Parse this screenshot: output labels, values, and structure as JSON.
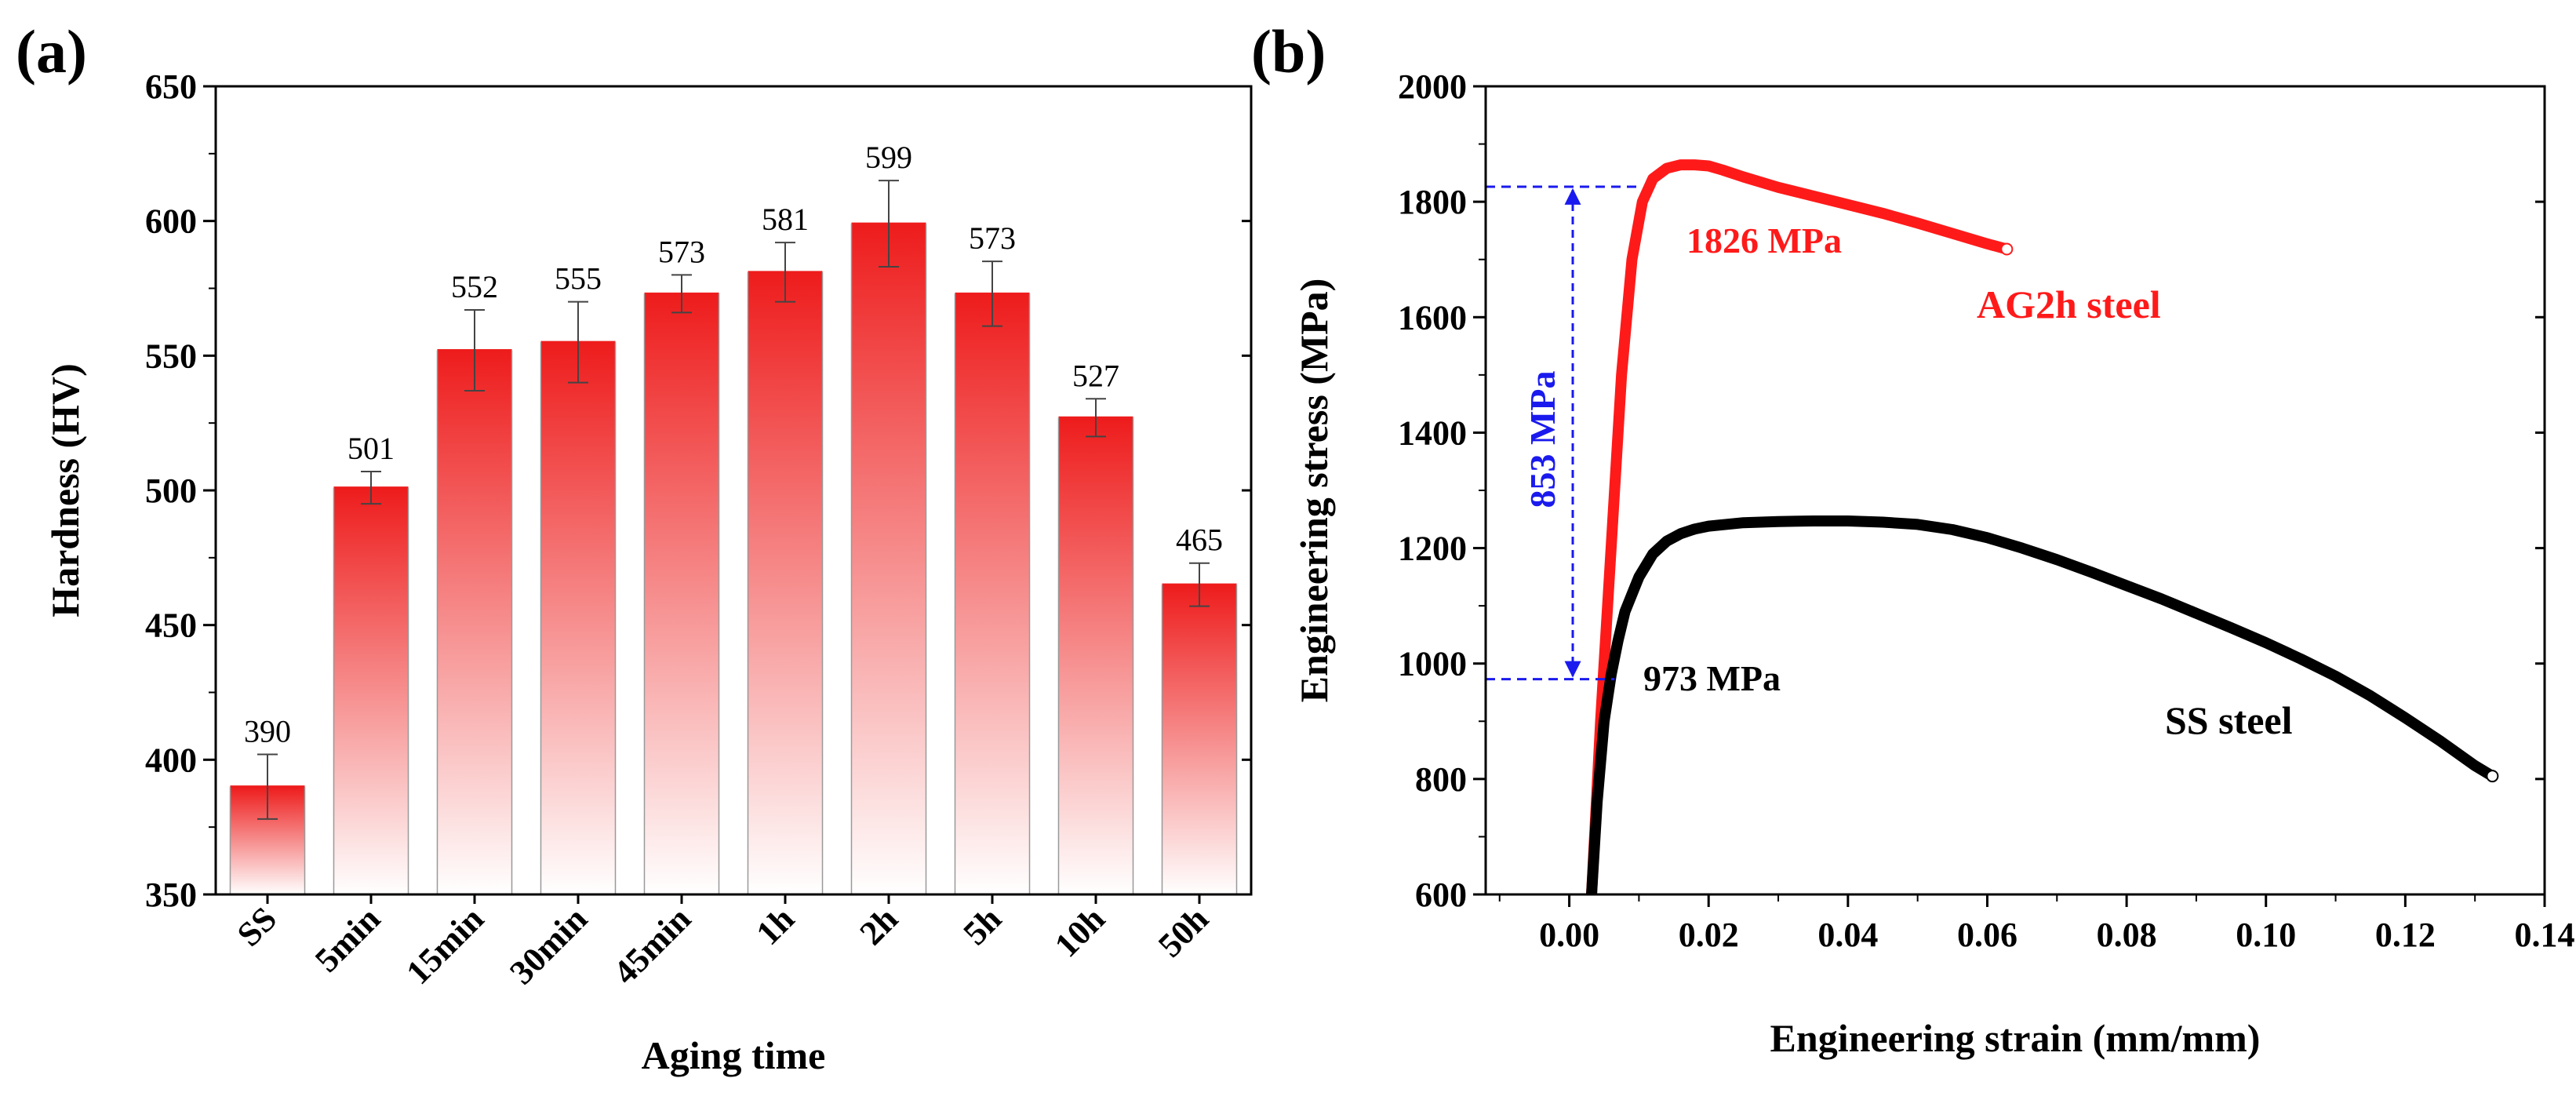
{
  "panels": {
    "a": {
      "label": "(a)"
    },
    "b": {
      "label": "(b)"
    }
  },
  "chart_data": [
    {
      "type": "bar",
      "panel": "a",
      "title": "",
      "xlabel": "Aging time",
      "ylabel": "Hardness (HV)",
      "categories": [
        "SS",
        "5min",
        "15min",
        "30min",
        "45min",
        "1h",
        "2h",
        "5h",
        "10h",
        "50h"
      ],
      "values": [
        390,
        501,
        552,
        555,
        573,
        581,
        599,
        573,
        527,
        465
      ],
      "value_labels": [
        "390",
        "501",
        "552",
        "555",
        "573",
        "581",
        "599",
        "573",
        "527",
        "465"
      ],
      "errors": [
        12,
        6,
        15,
        15,
        7,
        11,
        16,
        12,
        7,
        8
      ],
      "ylim": [
        350,
        650
      ],
      "yticks": [
        350,
        400,
        450,
        500,
        550,
        600,
        650
      ],
      "ytick_labels": [
        "350",
        "400",
        "450",
        "500",
        "550",
        "600",
        "650"
      ],
      "bar_color": "#ee1c1c",
      "grid": false
    },
    {
      "type": "line",
      "panel": "b",
      "title": "",
      "xlabel": "Engineering strain (mm/mm)",
      "ylabel": "Engineering stress (MPa)",
      "xlim": [
        -0.012,
        0.14
      ],
      "ylim": [
        600,
        2000
      ],
      "xticks": [
        0.0,
        0.02,
        0.04,
        0.06,
        0.08,
        0.1,
        0.12,
        0.14
      ],
      "xtick_labels": [
        "0.00",
        "0.02",
        "0.04",
        "0.06",
        "0.08",
        "0.10",
        "0.12",
        "0.14"
      ],
      "yticks": [
        600,
        800,
        1000,
        1200,
        1400,
        1600,
        1800,
        2000
      ],
      "ytick_labels": [
        "600",
        "800",
        "1000",
        "1200",
        "1400",
        "1600",
        "1800",
        "2000"
      ],
      "series": [
        {
          "name": "AG2h steel",
          "color": "#ff1a1a",
          "x": [
            0.0032,
            0.0045,
            0.006,
            0.0075,
            0.009,
            0.0105,
            0.012,
            0.014,
            0.016,
            0.018,
            0.02,
            0.022,
            0.025,
            0.03,
            0.035,
            0.04,
            0.045,
            0.05,
            0.055,
            0.06,
            0.0628
          ],
          "y": [
            600,
            900,
            1200,
            1500,
            1700,
            1800,
            1840,
            1858,
            1864,
            1864,
            1862,
            1855,
            1843,
            1825,
            1810,
            1795,
            1780,
            1763,
            1745,
            1727,
            1718
          ]
        },
        {
          "name": "SS steel",
          "color": "#000000",
          "x": [
            0.0032,
            0.004,
            0.005,
            0.006,
            0.007,
            0.008,
            0.009,
            0.01,
            0.012,
            0.014,
            0.016,
            0.018,
            0.02,
            0.025,
            0.03,
            0.035,
            0.04,
            0.045,
            0.05,
            0.055,
            0.06,
            0.065,
            0.07,
            0.075,
            0.08,
            0.085,
            0.09,
            0.095,
            0.1,
            0.105,
            0.11,
            0.115,
            0.12,
            0.125,
            0.13,
            0.1325
          ],
          "y": [
            600,
            760,
            900,
            980,
            1040,
            1090,
            1120,
            1150,
            1190,
            1212,
            1225,
            1233,
            1238,
            1244,
            1246,
            1247,
            1247,
            1245,
            1241,
            1232,
            1218,
            1200,
            1180,
            1158,
            1135,
            1112,
            1087,
            1062,
            1036,
            1008,
            978,
            944,
            906,
            866,
            823,
            805
          ]
        }
      ],
      "annotations": [
        {
          "text": "1826 MPa",
          "color": "#ff1a1a"
        },
        {
          "text": "AG2h steel",
          "color": "#ff1a1a"
        },
        {
          "text": "973 MPa",
          "color": "#000000"
        },
        {
          "text": "SS steel",
          "color": "#000000"
        },
        {
          "text": "853 MPa",
          "color": "#1a1aee"
        }
      ],
      "yield_stress_ag2h": 1826,
      "yield_stress_ss": 973,
      "strength_difference": 853,
      "grid": false
    }
  ]
}
